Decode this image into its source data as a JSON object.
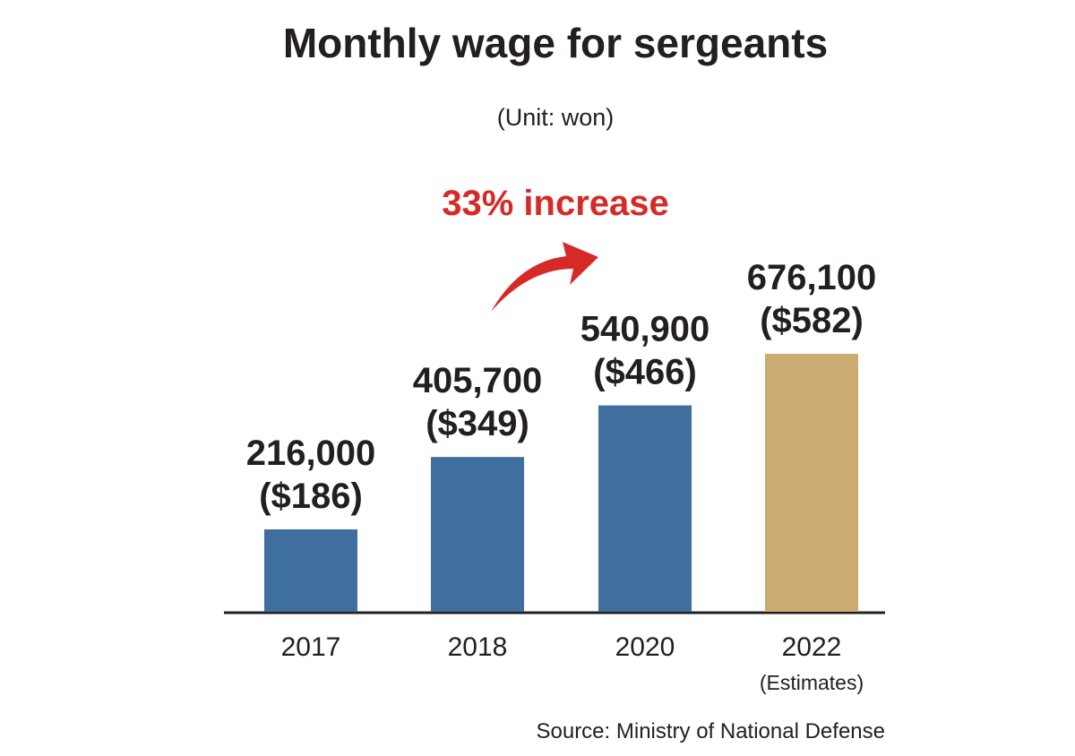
{
  "chart_data": {
    "type": "bar",
    "title": "Monthly wage for sergeants",
    "subtitle": "(Unit: won)",
    "annotation": "33% increase",
    "source": "Source: Ministry of National Defense",
    "categories": [
      "2017",
      "2018",
      "2020",
      "2022"
    ],
    "category_notes": [
      null,
      null,
      null,
      "(Estimates)"
    ],
    "values": [
      216000,
      405700,
      540900,
      676100
    ],
    "value_labels": [
      "216,000",
      "405,700",
      "540,900",
      "676,100"
    ],
    "usd_labels": [
      "($186)",
      "($349)",
      "($466)",
      "($582)"
    ],
    "colors": [
      "#3e6f9e",
      "#3e6f9e",
      "#3e6f9e",
      "#cbab72"
    ]
  }
}
